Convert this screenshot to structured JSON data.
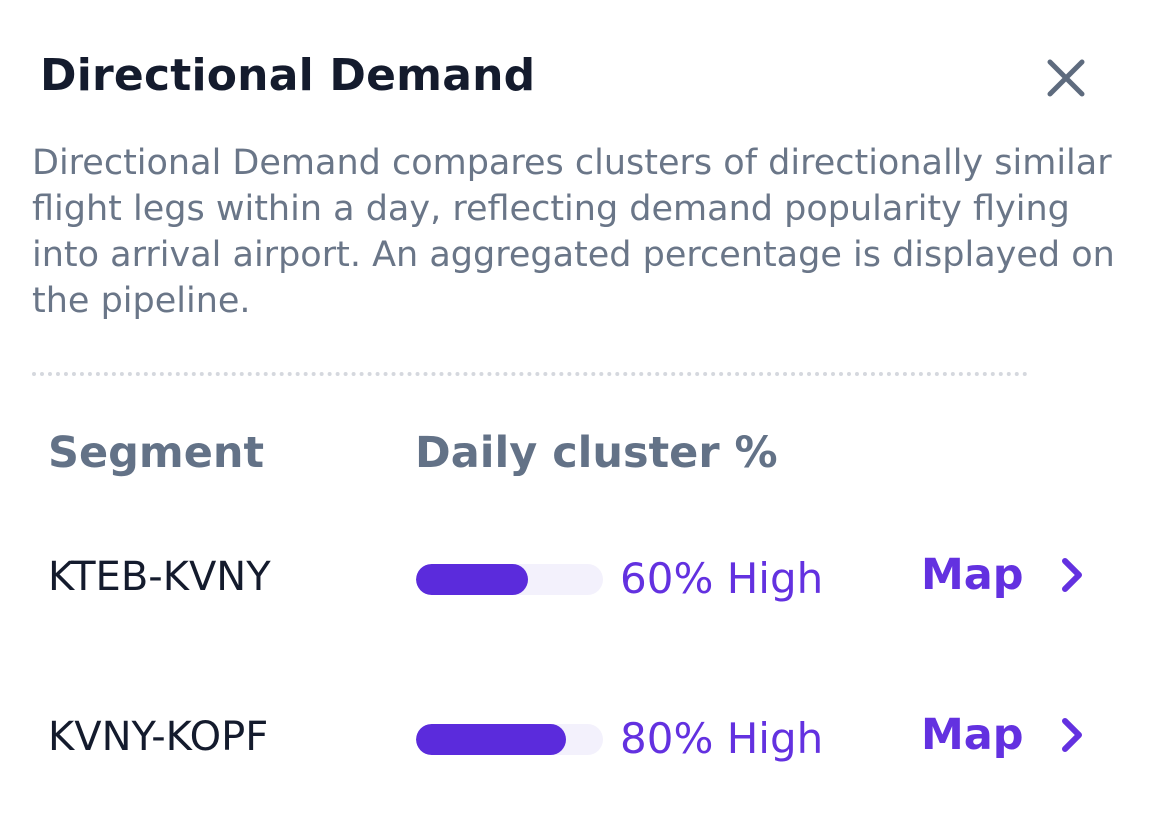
{
  "panel": {
    "title": "Directional Demand",
    "description": "Directional Demand compares clusters of directionally similar flight legs within a day, reflecting demand popularity flying into arrival airport. An aggregated percentage is displayed on the pipeline."
  },
  "table": {
    "headers": {
      "segment": "Segment",
      "daily_cluster": "Daily cluster %"
    },
    "rows": [
      {
        "segment": "KTEB-KVNY",
        "percent_label": "60% High",
        "fill_fraction": 0.6,
        "map_label": "Map"
      },
      {
        "segment": "KVNY-KOPF",
        "percent_label": "80% High",
        "fill_fraction": 0.8,
        "map_label": "Map"
      }
    ]
  },
  "icons": {
    "close": "close-icon",
    "chevron": "chevron-right-icon"
  },
  "colors": {
    "accent": "#6331e0",
    "bar_fill": "#5b2bdc",
    "bar_track": "#f3f1fc",
    "title": "#141b2d",
    "muted": "#6a7688"
  }
}
